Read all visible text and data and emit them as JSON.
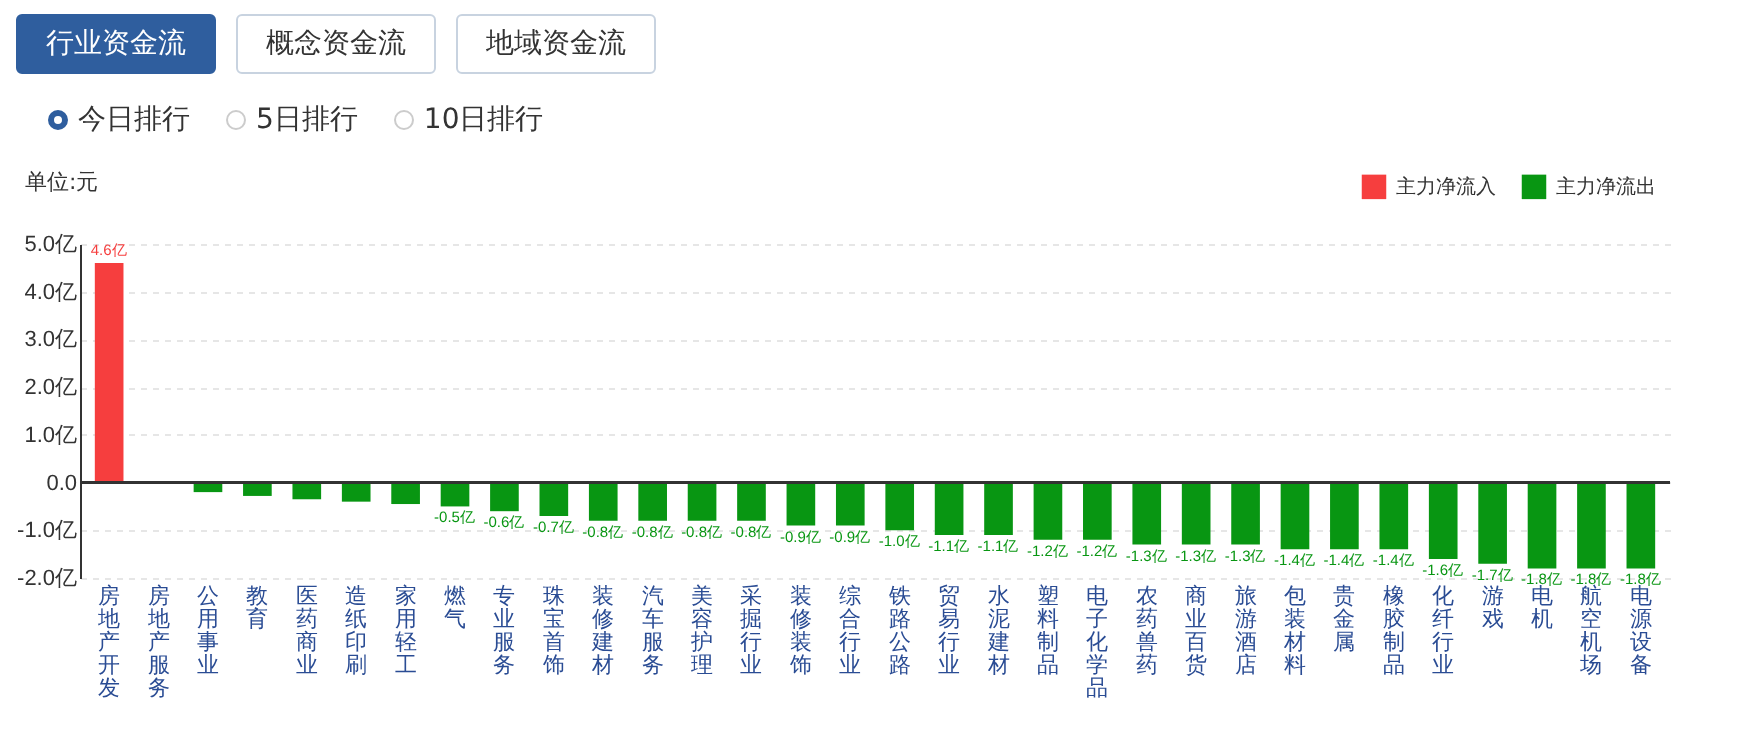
{
  "chart_data": {
    "type": "bar",
    "ylabel": "单位:元",
    "annotations": [
      "行业资金流",
      "概念资金流",
      "地域资金流",
      "今日排行",
      "5日排行",
      "10日排行"
    ],
    "categories": [
      "房地产开发",
      "房地产服务",
      "公用事业",
      "教育",
      "医药商业",
      "造纸印刷",
      "家用轻工",
      "燃气",
      "专业服务",
      "珠宝首饰",
      "装修建材",
      "汽车服务",
      "美容护理",
      "采掘行业",
      "装修装饰",
      "综合行业",
      "铁路公路",
      "贸易行业",
      "水泥建材",
      "塑料制品",
      "电子化学品",
      "农药兽药",
      "商业百货",
      "旅游酒店",
      "包装材料",
      "贵金属",
      "橡胶制品",
      "化纤行业",
      "游戏",
      "电机",
      "航空机场",
      "电源设备"
    ],
    "series": [
      {
        "name": "主力净流入",
        "color": "#f63e3e",
        "values": [
          4.6,
          null,
          null,
          null,
          null,
          null,
          null,
          null,
          null,
          null,
          null,
          null,
          null,
          null,
          null,
          null,
          null,
          null,
          null,
          null,
          null,
          null,
          null,
          null,
          null,
          null,
          null,
          null,
          null,
          null,
          null,
          null
        ],
        "value_labels": [
          "4.6亿",
          null,
          null,
          null,
          null,
          null,
          null,
          null,
          null,
          null,
          null,
          null,
          null,
          null,
          null,
          null,
          null,
          null,
          null,
          null,
          null,
          null,
          null,
          null,
          null,
          null,
          null,
          null,
          null,
          null,
          null,
          null
        ]
      },
      {
        "name": "主力净流出",
        "color": "#089612",
        "values": [
          null,
          0,
          -0.2,
          -0.28,
          -0.35,
          -0.4,
          -0.45,
          -0.5,
          -0.6,
          -0.7,
          -0.8,
          -0.8,
          -0.8,
          -0.8,
          -0.9,
          -0.9,
          -1.0,
          -1.1,
          -1.1,
          -1.2,
          -1.2,
          -1.3,
          -1.3,
          -1.3,
          -1.4,
          -1.4,
          -1.4,
          -1.6,
          -1.7,
          -1.8,
          -1.8,
          -1.8
        ],
        "value_labels": [
          null,
          null,
          null,
          null,
          null,
          null,
          null,
          "-0.5亿",
          "-0.6亿",
          "-0.7亿",
          "-0.8亿",
          "-0.8亿",
          "-0.8亿",
          "-0.8亿",
          "-0.9亿",
          "-0.9亿",
          "-1.0亿",
          "-1.1亿",
          "-1.1亿",
          "-1.2亿",
          "-1.2亿",
          "-1.3亿",
          "-1.3亿",
          "-1.3亿",
          "-1.4亿",
          "-1.4亿",
          "-1.4亿",
          "-1.6亿",
          "-1.7亿",
          "-1.8亿",
          "-1.8亿",
          "-1.8亿"
        ]
      }
    ],
    "ylim": [
      -2,
      5
    ],
    "yticks": [
      {
        "value": 5,
        "label": "5.0亿"
      },
      {
        "value": 4,
        "label": "4.0亿"
      },
      {
        "value": 3,
        "label": "3.0亿"
      },
      {
        "value": 2,
        "label": "2.0亿"
      },
      {
        "value": 1,
        "label": "1.0亿"
      },
      {
        "value": 0,
        "label": "0.0"
      },
      {
        "value": -1,
        "label": "-1.0亿"
      },
      {
        "value": -2,
        "label": "-2.0亿"
      }
    ],
    "grid": "y",
    "legend": "top right"
  }
}
